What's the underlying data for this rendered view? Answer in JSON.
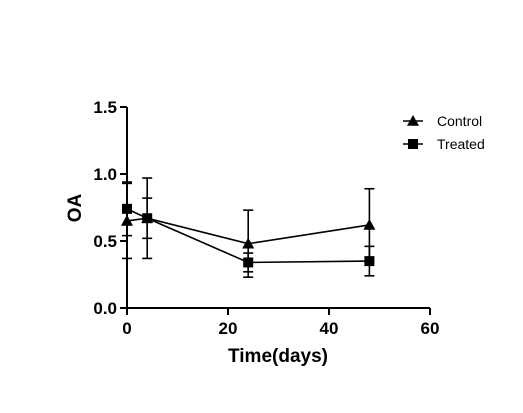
{
  "chart_data": {
    "type": "line",
    "title": "",
    "xlabel": "Time(days)",
    "ylabel": "OA",
    "xlim": [
      0,
      60
    ],
    "ylim": [
      0,
      1.5
    ],
    "x_ticks": [
      0,
      20,
      40,
      60
    ],
    "x_tick_labels": [
      "0",
      "20",
      "40",
      "60"
    ],
    "y_ticks": [
      0,
      0.5,
      1.0,
      1.5
    ],
    "y_tick_labels": [
      "0.0",
      "0.5",
      "1.0",
      "1.5"
    ],
    "grid": false,
    "legend_position": "top-right",
    "series": [
      {
        "name": "Control",
        "marker": "triangle",
        "color": "#000000",
        "x": [
          0,
          4,
          24,
          48
        ],
        "y": [
          0.65,
          0.67,
          0.48,
          0.62
        ],
        "error": [
          0.28,
          0.3,
          0.25,
          0.27
        ]
      },
      {
        "name": "Treated",
        "marker": "square",
        "color": "#000000",
        "x": [
          0,
          4,
          24,
          48
        ],
        "y": [
          0.74,
          0.67,
          0.34,
          0.35
        ],
        "error": [
          0.2,
          0.15,
          0.07,
          0.11
        ]
      }
    ]
  }
}
